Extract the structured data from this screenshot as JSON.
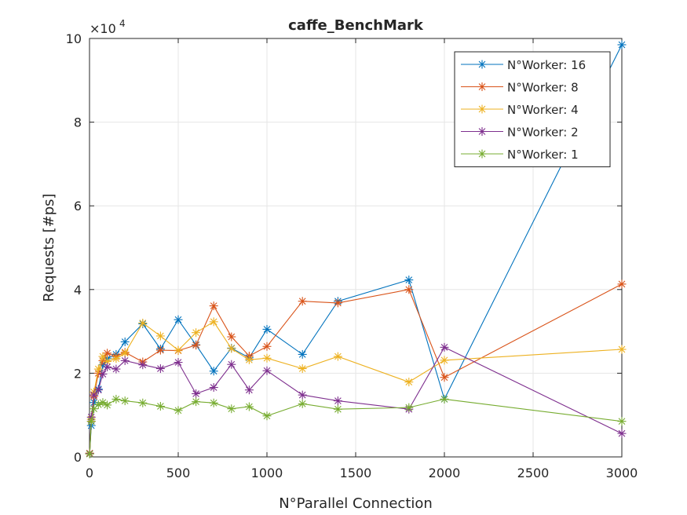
{
  "chart_data": {
    "type": "line",
    "title": "caffe_BenchMark",
    "xlabel": "N°Parallel Connection",
    "ylabel": "Requests [#ps]",
    "xlim": [
      0,
      3000
    ],
    "ylim": [
      0,
      100000
    ],
    "y_exponent_label": "×10",
    "y_exponent_power": "4",
    "x_ticks": [
      0,
      500,
      1000,
      1500,
      2000,
      2500,
      3000
    ],
    "x_tick_labels": [
      "0",
      "500",
      "1000",
      "1500",
      "2000",
      "2500",
      "3000"
    ],
    "y_ticks": [
      0,
      20000,
      40000,
      60000,
      80000,
      100000
    ],
    "y_tick_labels": [
      "0",
      "2",
      "4",
      "6",
      "8",
      "10"
    ],
    "grid": true,
    "legend_position": "top-right",
    "marker": "asterisk",
    "series": [
      {
        "name": "N°Worker: 16",
        "color": "#0072BD",
        "x": [
          1,
          10,
          25,
          50,
          75,
          100,
          150,
          200,
          300,
          400,
          500,
          600,
          700,
          800,
          900,
          1000,
          1200,
          1400,
          1800,
          2000,
          3000
        ],
        "y": [
          800,
          7500,
          13000,
          16200,
          22000,
          23500,
          24500,
          27500,
          31800,
          25800,
          32800,
          26800,
          20500,
          26000,
          23700,
          30500,
          24500,
          37200,
          42300,
          13800,
          98500
        ]
      },
      {
        "name": "N°Worker: 8",
        "color": "#D95319",
        "x": [
          1,
          10,
          25,
          50,
          75,
          100,
          150,
          200,
          300,
          400,
          500,
          600,
          700,
          800,
          900,
          1000,
          1200,
          1400,
          1800,
          2000,
          3000
        ],
        "y": [
          900,
          8500,
          14500,
          20000,
          23000,
          24800,
          24000,
          25000,
          22700,
          25500,
          25400,
          26700,
          36100,
          28700,
          24100,
          26400,
          37200,
          36800,
          40000,
          19000,
          41300
        ]
      },
      {
        "name": "N°Worker: 4",
        "color": "#EDB120",
        "x": [
          1,
          10,
          25,
          50,
          75,
          100,
          150,
          200,
          300,
          400,
          500,
          600,
          700,
          800,
          900,
          1000,
          1200,
          1400,
          1800,
          2000,
          3000
        ],
        "y": [
          800,
          9000,
          15500,
          21000,
          24000,
          22800,
          23500,
          24800,
          32000,
          28900,
          25500,
          29700,
          32300,
          25900,
          23200,
          23600,
          21100,
          24000,
          17900,
          23100,
          25700
        ]
      },
      {
        "name": "N°Worker: 2",
        "color": "#7E2F8E",
        "x": [
          1,
          10,
          25,
          50,
          75,
          100,
          150,
          200,
          300,
          400,
          500,
          600,
          700,
          800,
          900,
          1000,
          1200,
          1400,
          1800,
          2000,
          3000
        ],
        "y": [
          800,
          9500,
          14800,
          16000,
          19800,
          21500,
          21000,
          23000,
          22000,
          21100,
          22600,
          15100,
          16600,
          22100,
          16000,
          20600,
          14800,
          13400,
          11400,
          26200,
          5600
        ]
      },
      {
        "name": "N°Worker: 1",
        "color": "#77AC30",
        "x": [
          1,
          10,
          25,
          50,
          75,
          100,
          150,
          200,
          300,
          400,
          500,
          600,
          700,
          800,
          900,
          1000,
          1200,
          1400,
          1800,
          2000,
          3000
        ],
        "y": [
          700,
          8500,
          11500,
          12500,
          13000,
          12400,
          13800,
          13400,
          12900,
          12100,
          11100,
          13200,
          12900,
          11500,
          12000,
          9800,
          12700,
          11400,
          11800,
          13800,
          8500
        ]
      }
    ]
  }
}
